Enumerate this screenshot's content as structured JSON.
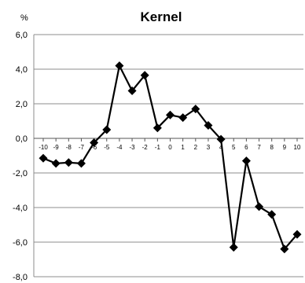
{
  "chart_data": {
    "type": "line",
    "title": "Kernel",
    "y_unit_label": "%",
    "xlabel": "",
    "ylabel": "",
    "categories": [
      "-10",
      "-9",
      "-8",
      "-7",
      "-6",
      "-5",
      "-4",
      "-3",
      "-2",
      "-1",
      "0",
      "1",
      "2",
      "3",
      "4",
      "5",
      "6",
      "7",
      "8",
      "9",
      "10"
    ],
    "y_tick_labels": [
      "6,0",
      "4,0",
      "2,0",
      "0,0",
      "-2,0",
      "-4,0",
      "-6,0",
      "-8,0"
    ],
    "y_ticks": [
      6,
      4,
      2,
      0,
      -2,
      -4,
      -6,
      -8
    ],
    "ylim": [
      -8,
      6
    ],
    "grid": true,
    "legend": "none",
    "series": [
      {
        "values": [
          -1.15,
          -1.45,
          -1.4,
          -1.45,
          -0.25,
          0.5,
          4.2,
          2.75,
          3.65,
          0.6,
          1.35,
          1.2,
          1.7,
          0.75,
          -0.05,
          -6.3,
          -1.3,
          -3.95,
          -4.4,
          -6.4,
          -5.55
        ],
        "color": "#000000",
        "marker": "diamond"
      }
    ]
  }
}
